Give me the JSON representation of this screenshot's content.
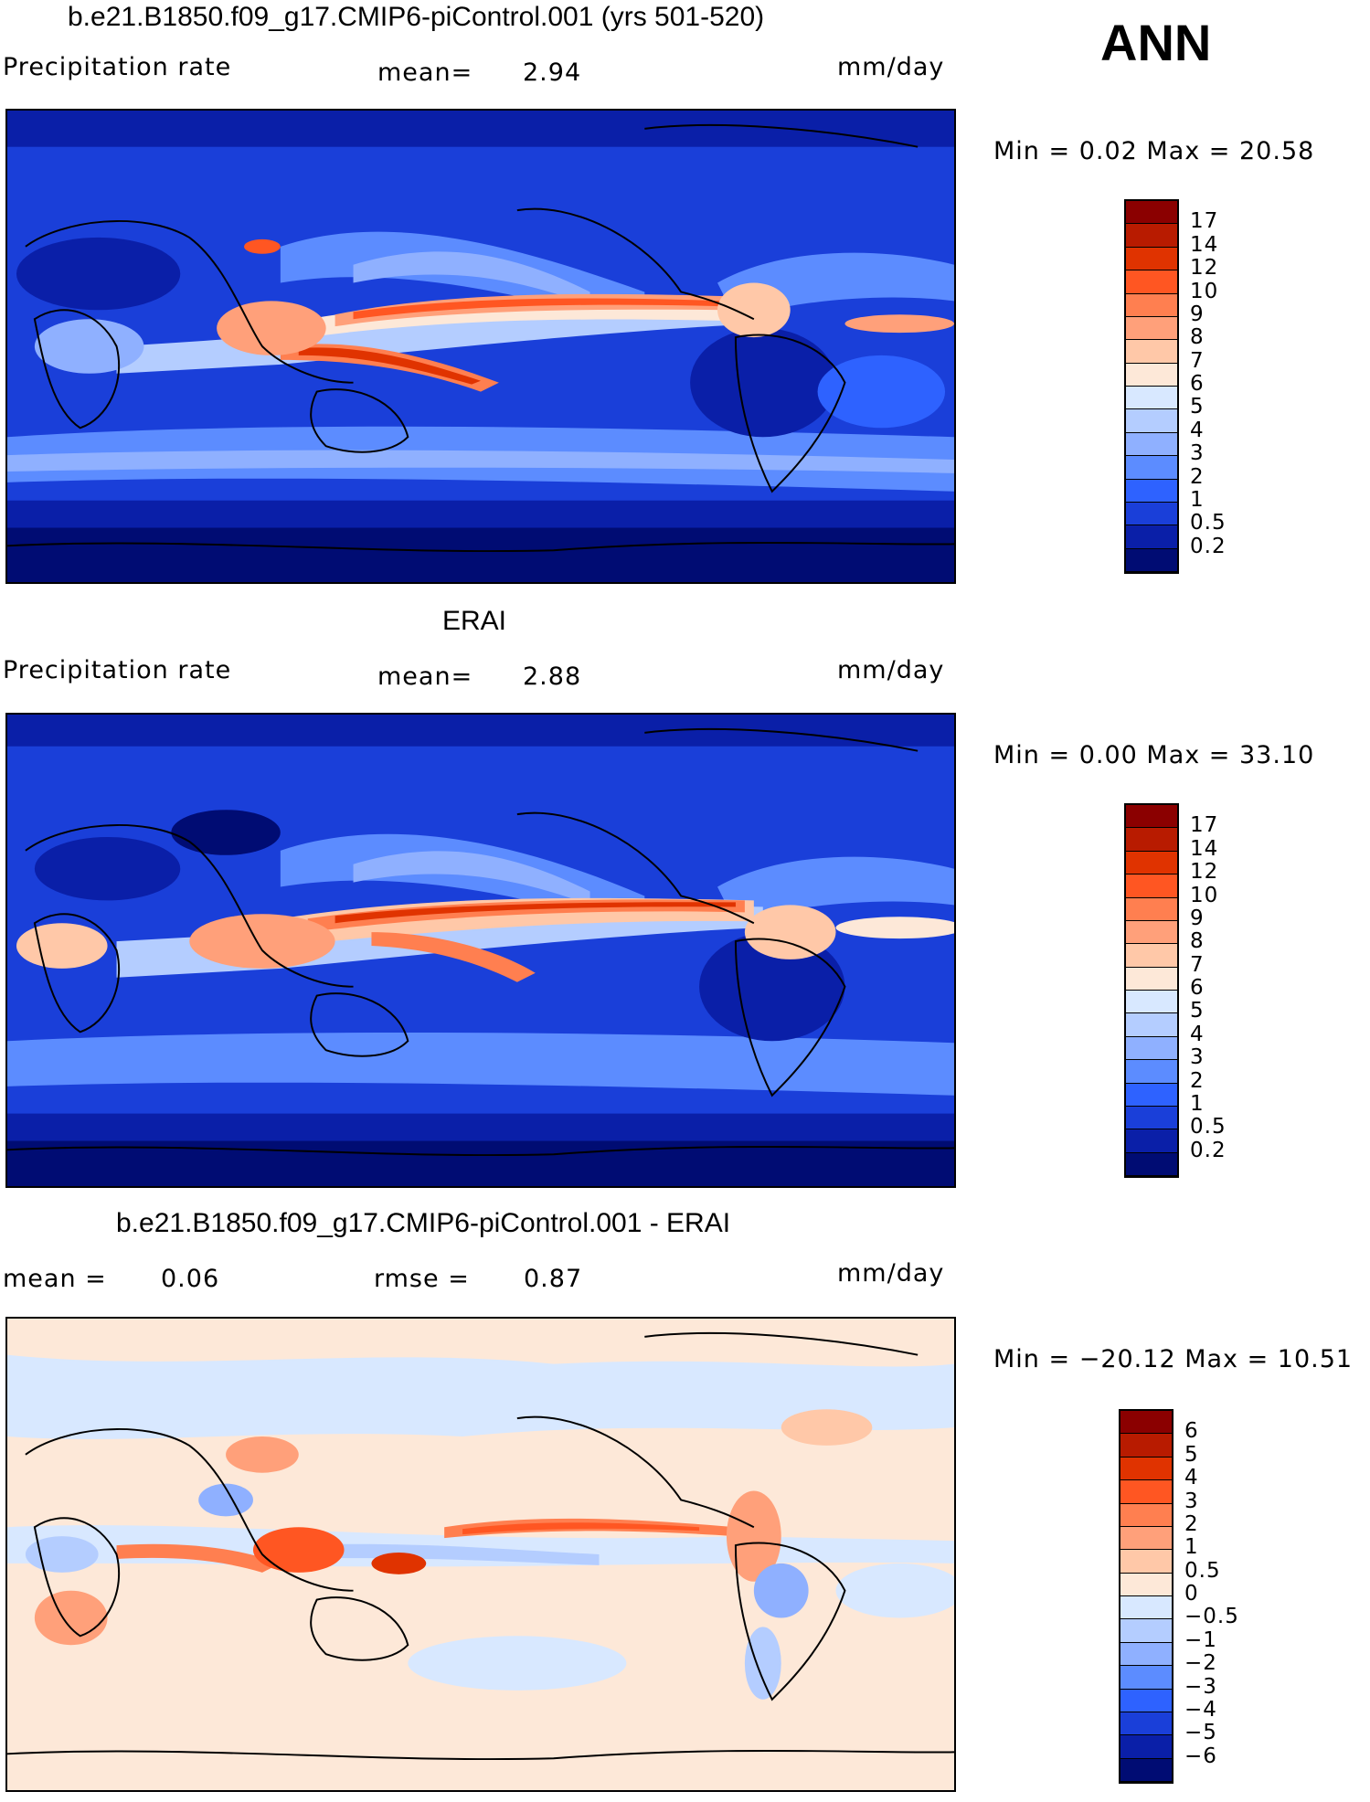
{
  "season": "ANN",
  "panels": [
    {
      "title": "b.e21.B1850.f09_g17.CMIP6-piControl.001 (yrs 501-520)",
      "left_label": "Precipitation  rate",
      "stat1_label": "mean=",
      "stat1_value": "2.94",
      "stat2_label": "",
      "stat2_value": "",
      "units": "mm/day",
      "minmax": "Min  =    0.02  Max  =    20.58",
      "colorbar": {
        "levels": [
          "17",
          "14",
          "12",
          "10",
          "9",
          "8",
          "7",
          "6",
          "5",
          "4",
          "3",
          "2",
          "1",
          "0.5",
          "0.2"
        ],
        "colors": [
          "#8b0000",
          "#b81b00",
          "#e03300",
          "#ff5622",
          "#ff7f50",
          "#ffa07a",
          "#ffc8a8",
          "#fde8d8",
          "#d8e8ff",
          "#b4cdff",
          "#8fb0ff",
          "#5c8cff",
          "#2e62ff",
          "#1a3fd9",
          "#0a1fa8",
          "#000c73"
        ]
      }
    },
    {
      "title": "ERAI",
      "left_label": "Precipitation  rate",
      "stat1_label": "mean=",
      "stat1_value": "2.88",
      "stat2_label": "",
      "stat2_value": "",
      "units": "mm/day",
      "minmax": "Min  =    0.00  Max  =    33.10",
      "colorbar": {
        "levels": [
          "17",
          "14",
          "12",
          "10",
          "9",
          "8",
          "7",
          "6",
          "5",
          "4",
          "3",
          "2",
          "1",
          "0.5",
          "0.2"
        ],
        "colors": [
          "#8b0000",
          "#b81b00",
          "#e03300",
          "#ff5622",
          "#ff7f50",
          "#ffa07a",
          "#ffc8a8",
          "#fde8d8",
          "#d8e8ff",
          "#b4cdff",
          "#8fb0ff",
          "#5c8cff",
          "#2e62ff",
          "#1a3fd9",
          "#0a1fa8",
          "#000c73"
        ]
      }
    },
    {
      "title": "b.e21.B1850.f09_g17.CMIP6-piControl.001 - ERAI",
      "left_label": "mean  =",
      "stat1_label": "0.06",
      "stat1_value": "",
      "stat2_label": "rmse  =",
      "stat2_value": "0.87",
      "units": "mm/day",
      "minmax": "Min  = −20.12  Max  =    10.51",
      "colorbar": {
        "levels": [
          "6",
          "5",
          "4",
          "3",
          "2",
          "1",
          "0.5",
          "0",
          "−0.5",
          "−1",
          "−2",
          "−3",
          "−4",
          "−5",
          "−6"
        ],
        "colors": [
          "#8b0000",
          "#b81b00",
          "#e03300",
          "#ff5622",
          "#ff7f50",
          "#ffa07a",
          "#ffc8a8",
          "#fde8d8",
          "#d8e8ff",
          "#b4cdff",
          "#8fb0ff",
          "#5c8cff",
          "#2e62ff",
          "#1a3fd9",
          "#0a1fa8",
          "#000c73"
        ]
      }
    }
  ]
}
